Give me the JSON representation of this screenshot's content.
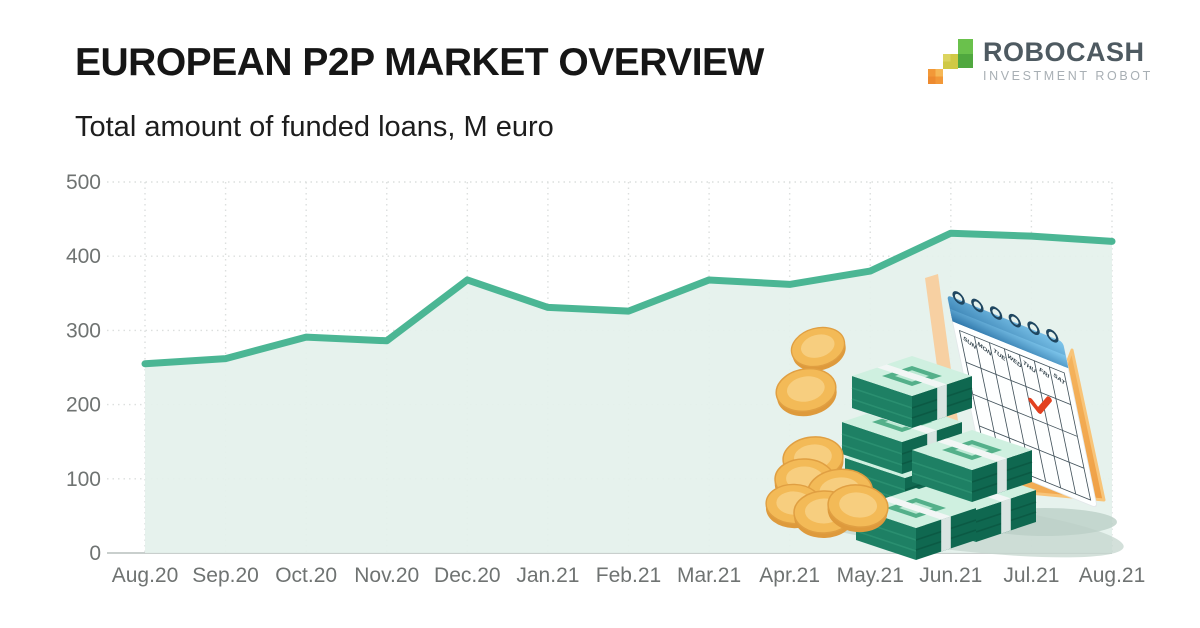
{
  "header": {
    "title": "EUROPEAN P2P MARKET OVERVIEW",
    "subtitle": "Total amount of funded loans, M euro"
  },
  "logo": {
    "name": "ROBOCASH",
    "tagline": "INVESTMENT ROBOT"
  },
  "chart_data": {
    "type": "area",
    "title": "Total amount of funded loans, M euro",
    "categories": [
      "Aug.20",
      "Sep.20",
      "Oct.20",
      "Nov.20",
      "Dec.20",
      "Jan.21",
      "Feb.21",
      "Mar.21",
      "Apr.21",
      "May.21",
      "Jun.21",
      "Jul.21",
      "Aug.21"
    ],
    "values": [
      255,
      262,
      291,
      286,
      368,
      331,
      326,
      368,
      362,
      380,
      431,
      427,
      420
    ],
    "series_name": "Total amount of funded loans, M euro",
    "xlabel": "",
    "ylabel": "",
    "ylim": [
      0,
      500
    ],
    "yticks": [
      0,
      100,
      200,
      300,
      400,
      500
    ],
    "grid": "dotted",
    "legend": "none",
    "line_color": "#4bb694",
    "fill_color": "#e4f1ec",
    "axis_label_color": "#6f7372",
    "baseline_color": "#c9cfcd"
  },
  "illustration": {
    "description": "stacks of green banknotes, gold coins and a desk calendar with a red checkmark",
    "calendar_days": [
      "SUN",
      "MON",
      "TUE",
      "WED",
      "THU",
      "FRI",
      "SAT"
    ]
  }
}
